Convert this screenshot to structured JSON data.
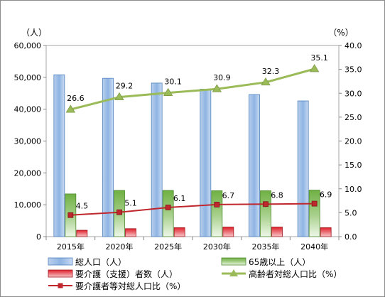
{
  "chart_data": {
    "type": "bar",
    "categories": [
      "2015年",
      "2020年",
      "2025年",
      "2030年",
      "2035年",
      "2040年"
    ],
    "left_axis": {
      "unit": "（人）",
      "ylim": [
        0,
        60000
      ],
      "ticks": [
        "0",
        "10,000",
        "20,000",
        "30,000",
        "40,000",
        "50,000",
        "60,000"
      ]
    },
    "right_axis": {
      "unit": "（%）",
      "ylim": [
        0,
        40
      ],
      "ticks": [
        "0.0",
        "5.0",
        "10.0",
        "15.0",
        "20.0",
        "25.0",
        "30.0",
        "35.0",
        "40.0"
      ]
    },
    "series": [
      {
        "name": "総人口（人）",
        "type": "bar",
        "axis": "left",
        "color": "#8eb4e3",
        "values": [
          50800,
          49700,
          48200,
          46300,
          44600,
          42600
        ]
      },
      {
        "name": "65歳以上（人）",
        "type": "bar",
        "axis": "left",
        "color": "#77b94c",
        "values": [
          13400,
          14500,
          14500,
          14400,
          14400,
          14600
        ]
      },
      {
        "name": "要介護（支援）者数（人）",
        "type": "bar",
        "axis": "left",
        "color": "#e0202a",
        "values": [
          2000,
          2500,
          2800,
          3000,
          3000,
          2800
        ]
      },
      {
        "name": "高齢者対総人口比（%）",
        "type": "line",
        "axis": "right",
        "color": "#9bbb59",
        "values": [
          26.6,
          29.2,
          30.1,
          30.9,
          32.3,
          35.1
        ],
        "labels": [
          "26.6",
          "29.2",
          "30.1",
          "30.9",
          "32.3",
          "35.1"
        ]
      },
      {
        "name": "要介護者等対総人口比（%）",
        "type": "line",
        "axis": "right",
        "color": "#c0272d",
        "values": [
          4.5,
          5.1,
          6.1,
          6.7,
          6.8,
          6.9
        ],
        "labels": [
          "4.5",
          "5.1",
          "6.1",
          "6.7",
          "6.8",
          "6.9"
        ]
      }
    ],
    "grid": false,
    "legend_position": "bottom"
  }
}
